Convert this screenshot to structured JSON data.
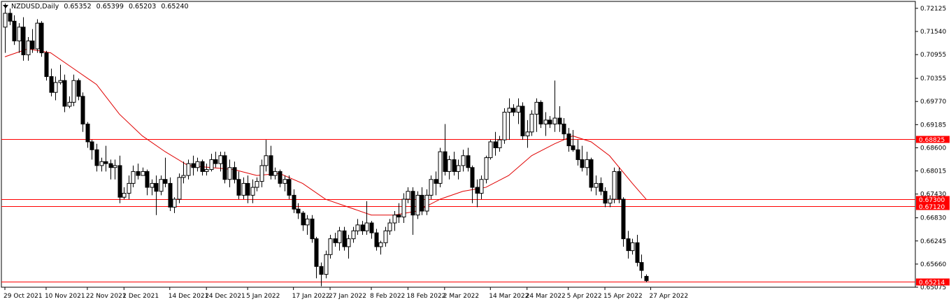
{
  "header": {
    "symbol": "NZDUSD,Daily",
    "open": "0.65352",
    "high": "0.65399",
    "low": "0.65203",
    "close": "0.65240"
  },
  "chart_data": {
    "type": "candlestick",
    "symbol": "NZDUSD",
    "timeframe": "Daily",
    "ylim": [
      0.65075,
      0.723
    ],
    "y_ticks": [
      "0.72125",
      "0.71540",
      "0.70955",
      "0.70355",
      "0.69770",
      "0.69185",
      "0.68600",
      "0.68015",
      "0.67430",
      "0.66830",
      "0.66245",
      "0.65660",
      "0.65075"
    ],
    "x_ticks": [
      {
        "index": 0,
        "label": "29 Oct 2021"
      },
      {
        "index": 9,
        "label": "10 Nov 2021"
      },
      {
        "index": 18,
        "label": "22 Nov 2021"
      },
      {
        "index": 26,
        "label": "2 Dec 2021"
      },
      {
        "index": 36,
        "label": "14 Dec 2021"
      },
      {
        "index": 44,
        "label": "24 Dec 2021"
      },
      {
        "index": 53,
        "label": "5 Jan 2022"
      },
      {
        "index": 63,
        "label": "17 Jan 2022"
      },
      {
        "index": 71,
        "label": "27 Jan 2022"
      },
      {
        "index": 80,
        "label": "8 Feb 2022"
      },
      {
        "index": 88,
        "label": "18 Feb 2022"
      },
      {
        "index": 96,
        "label": "2 Mar 2022"
      },
      {
        "index": 106,
        "label": "14 Mar 2022"
      },
      {
        "index": 114,
        "label": "24 Mar 2022"
      },
      {
        "index": 123,
        "label": "5 Apr 2022"
      },
      {
        "index": 131,
        "label": "15 Apr 2022"
      },
      {
        "index": 141,
        "label": "27 Apr 2022"
      }
    ],
    "levels": [
      {
        "value": 0.68825,
        "label": "0.68825",
        "color": "#ff0000"
      },
      {
        "value": 0.673,
        "label": "0.67300",
        "color": "#ff0000"
      },
      {
        "value": 0.6712,
        "label": "0.67120",
        "color": "#ff0000"
      },
      {
        "value": 0.65214,
        "label": "0.65214",
        "color": "#ff0000"
      }
    ],
    "ma_color": "#e00000",
    "colors": {
      "bull": "#ffffff",
      "bear": "#000000",
      "wick": "#000000",
      "grid_border": "#000000"
    },
    "candles": [
      [
        0.7165,
        0.7225,
        0.71,
        0.72
      ],
      [
        0.72,
        0.7212,
        0.717,
        0.718
      ],
      [
        0.718,
        0.7195,
        0.712,
        0.713
      ],
      [
        0.713,
        0.7175,
        0.71,
        0.7165
      ],
      [
        0.7165,
        0.719,
        0.708,
        0.7095
      ],
      [
        0.7095,
        0.714,
        0.708,
        0.713
      ],
      [
        0.713,
        0.716,
        0.71,
        0.711
      ],
      [
        0.711,
        0.7185,
        0.71,
        0.7175
      ],
      [
        0.7175,
        0.718,
        0.709,
        0.71
      ],
      [
        0.71,
        0.7105,
        0.703,
        0.704
      ],
      [
        0.704,
        0.706,
        0.699,
        0.7
      ],
      [
        0.7,
        0.704,
        0.698,
        0.7025
      ],
      [
        0.7025,
        0.707,
        0.702,
        0.703
      ],
      [
        0.703,
        0.7045,
        0.695,
        0.6965
      ],
      [
        0.6965,
        0.699,
        0.696,
        0.6975
      ],
      [
        0.6975,
        0.7045,
        0.6965,
        0.703
      ],
      [
        0.703,
        0.7035,
        0.698,
        0.699
      ],
      [
        0.699,
        0.7,
        0.69,
        0.692
      ],
      [
        0.692,
        0.6925,
        0.686,
        0.6875
      ],
      [
        0.6875,
        0.688,
        0.683,
        0.6855
      ],
      [
        0.6855,
        0.687,
        0.68,
        0.6815
      ],
      [
        0.6815,
        0.6835,
        0.68,
        0.6825
      ],
      [
        0.6825,
        0.6865,
        0.68,
        0.682
      ],
      [
        0.682,
        0.683,
        0.678,
        0.681
      ],
      [
        0.681,
        0.683,
        0.678,
        0.6815
      ],
      [
        0.6815,
        0.684,
        0.672,
        0.6735
      ],
      [
        0.6735,
        0.676,
        0.673,
        0.6745
      ],
      [
        0.6745,
        0.679,
        0.673,
        0.677
      ],
      [
        0.677,
        0.6815,
        0.676,
        0.68
      ],
      [
        0.68,
        0.682,
        0.678,
        0.679
      ],
      [
        0.679,
        0.681,
        0.679,
        0.68
      ],
      [
        0.68,
        0.6805,
        0.674,
        0.676
      ],
      [
        0.676,
        0.678,
        0.674,
        0.677
      ],
      [
        0.677,
        0.679,
        0.669,
        0.675
      ],
      [
        0.675,
        0.679,
        0.674,
        0.678
      ],
      [
        0.678,
        0.6835,
        0.676,
        0.677
      ],
      [
        0.677,
        0.6785,
        0.67,
        0.671
      ],
      [
        0.671,
        0.6735,
        0.6695,
        0.673
      ],
      [
        0.673,
        0.6795,
        0.672,
        0.6785
      ],
      [
        0.6785,
        0.6825,
        0.677,
        0.679
      ],
      [
        0.679,
        0.683,
        0.678,
        0.682
      ],
      [
        0.682,
        0.684,
        0.679,
        0.681
      ],
      [
        0.681,
        0.6835,
        0.68,
        0.6825
      ],
      [
        0.6825,
        0.683,
        0.679,
        0.68
      ],
      [
        0.68,
        0.682,
        0.679,
        0.6805
      ],
      [
        0.6805,
        0.6845,
        0.68,
        0.683
      ],
      [
        0.683,
        0.685,
        0.681,
        0.682
      ],
      [
        0.682,
        0.685,
        0.68,
        0.684
      ],
      [
        0.684,
        0.685,
        0.677,
        0.678
      ],
      [
        0.678,
        0.683,
        0.676,
        0.681
      ],
      [
        0.681,
        0.6825,
        0.677,
        0.678
      ],
      [
        0.678,
        0.68,
        0.673,
        0.674
      ],
      [
        0.674,
        0.6785,
        0.673,
        0.677
      ],
      [
        0.677,
        0.679,
        0.672,
        0.674
      ],
      [
        0.674,
        0.678,
        0.672,
        0.676
      ],
      [
        0.676,
        0.6785,
        0.675,
        0.6775
      ],
      [
        0.6775,
        0.683,
        0.676,
        0.6815
      ],
      [
        0.6815,
        0.688,
        0.68,
        0.684
      ],
      [
        0.684,
        0.6865,
        0.678,
        0.679
      ],
      [
        0.679,
        0.681,
        0.678,
        0.68
      ],
      [
        0.68,
        0.6805,
        0.676,
        0.677
      ],
      [
        0.677,
        0.679,
        0.675,
        0.678
      ],
      [
        0.678,
        0.679,
        0.673,
        0.674
      ],
      [
        0.674,
        0.6755,
        0.6695,
        0.6705
      ],
      [
        0.6705,
        0.672,
        0.668,
        0.6695
      ],
      [
        0.6695,
        0.67,
        0.665,
        0.6665
      ],
      [
        0.6665,
        0.669,
        0.664,
        0.668
      ],
      [
        0.668,
        0.669,
        0.662,
        0.663
      ],
      [
        0.663,
        0.6635,
        0.653,
        0.656
      ],
      [
        0.656,
        0.657,
        0.651,
        0.654
      ],
      [
        0.654,
        0.66,
        0.653,
        0.659
      ],
      [
        0.659,
        0.664,
        0.658,
        0.663
      ],
      [
        0.663,
        0.6645,
        0.661,
        0.662
      ],
      [
        0.662,
        0.666,
        0.66,
        0.665
      ],
      [
        0.665,
        0.666,
        0.66,
        0.661
      ],
      [
        0.661,
        0.664,
        0.658,
        0.663
      ],
      [
        0.663,
        0.666,
        0.662,
        0.665
      ],
      [
        0.665,
        0.668,
        0.664,
        0.6665
      ],
      [
        0.6665,
        0.6675,
        0.664,
        0.665
      ],
      [
        0.665,
        0.6725,
        0.664,
        0.667
      ],
      [
        0.667,
        0.6675,
        0.663,
        0.6645
      ],
      [
        0.6645,
        0.6655,
        0.66,
        0.661
      ],
      [
        0.661,
        0.6625,
        0.659,
        0.662
      ],
      [
        0.662,
        0.666,
        0.661,
        0.665
      ],
      [
        0.665,
        0.668,
        0.664,
        0.667
      ],
      [
        0.667,
        0.67,
        0.665,
        0.669
      ],
      [
        0.669,
        0.672,
        0.667,
        0.6685
      ],
      [
        0.6685,
        0.6745,
        0.667,
        0.673
      ],
      [
        0.673,
        0.676,
        0.672,
        0.675
      ],
      [
        0.675,
        0.676,
        0.664,
        0.669
      ],
      [
        0.669,
        0.675,
        0.668,
        0.674
      ],
      [
        0.674,
        0.676,
        0.669,
        0.67
      ],
      [
        0.67,
        0.6755,
        0.669,
        0.674
      ],
      [
        0.674,
        0.679,
        0.673,
        0.678
      ],
      [
        0.678,
        0.68,
        0.674,
        0.677
      ],
      [
        0.677,
        0.686,
        0.676,
        0.685
      ],
      [
        0.685,
        0.692,
        0.679,
        0.68
      ],
      [
        0.68,
        0.684,
        0.678,
        0.683
      ],
      [
        0.683,
        0.685,
        0.679,
        0.68
      ],
      [
        0.68,
        0.683,
        0.678,
        0.6815
      ],
      [
        0.6815,
        0.6855,
        0.68,
        0.684
      ],
      [
        0.684,
        0.686,
        0.68,
        0.681
      ],
      [
        0.681,
        0.6815,
        0.672,
        0.676
      ],
      [
        0.676,
        0.678,
        0.671,
        0.6745
      ],
      [
        0.6745,
        0.679,
        0.673,
        0.678
      ],
      [
        0.678,
        0.684,
        0.677,
        0.6835
      ],
      [
        0.6835,
        0.688,
        0.683,
        0.6875
      ],
      [
        0.6875,
        0.69,
        0.684,
        0.686
      ],
      [
        0.686,
        0.689,
        0.685,
        0.688
      ],
      [
        0.688,
        0.696,
        0.687,
        0.695
      ],
      [
        0.695,
        0.6985,
        0.688,
        0.696
      ],
      [
        0.696,
        0.697,
        0.694,
        0.695
      ],
      [
        0.695,
        0.6985,
        0.692,
        0.6965
      ],
      [
        0.6965,
        0.6975,
        0.688,
        0.689
      ],
      [
        0.689,
        0.693,
        0.686,
        0.69
      ],
      [
        0.69,
        0.6955,
        0.689,
        0.6945
      ],
      [
        0.6945,
        0.6985,
        0.69,
        0.6975
      ],
      [
        0.6975,
        0.698,
        0.691,
        0.692
      ],
      [
        0.692,
        0.695,
        0.689,
        0.693
      ],
      [
        0.693,
        0.694,
        0.691,
        0.692
      ],
      [
        0.692,
        0.703,
        0.69,
        0.6935
      ],
      [
        0.6935,
        0.6965,
        0.69,
        0.692
      ],
      [
        0.692,
        0.6935,
        0.688,
        0.6895
      ],
      [
        0.6895,
        0.691,
        0.685,
        0.6865
      ],
      [
        0.6865,
        0.6905,
        0.685,
        0.6855
      ],
      [
        0.6855,
        0.688,
        0.6815,
        0.683
      ],
      [
        0.683,
        0.6865,
        0.68,
        0.681
      ],
      [
        0.681,
        0.685,
        0.679,
        0.683
      ],
      [
        0.683,
        0.6835,
        0.675,
        0.676
      ],
      [
        0.676,
        0.679,
        0.674,
        0.677
      ],
      [
        0.677,
        0.6785,
        0.674,
        0.675
      ],
      [
        0.675,
        0.676,
        0.671,
        0.672
      ],
      [
        0.672,
        0.674,
        0.671,
        0.673
      ],
      [
        0.673,
        0.681,
        0.672,
        0.68
      ],
      [
        0.68,
        0.681,
        0.672,
        0.673
      ],
      [
        0.673,
        0.6735,
        0.661,
        0.663
      ],
      [
        0.663,
        0.665,
        0.658,
        0.66
      ],
      [
        0.66,
        0.663,
        0.659,
        0.662
      ],
      [
        0.662,
        0.664,
        0.656,
        0.657
      ],
      [
        0.657,
        0.659,
        0.653,
        0.655
      ],
      [
        0.6535,
        0.654,
        0.652,
        0.6524
      ]
    ],
    "ma": [
      [
        0,
        0.709
      ],
      [
        5,
        0.711
      ],
      [
        10,
        0.71
      ],
      [
        15,
        0.706
      ],
      [
        20,
        0.702
      ],
      [
        25,
        0.6945
      ],
      [
        30,
        0.689
      ],
      [
        35,
        0.685
      ],
      [
        40,
        0.6815
      ],
      [
        45,
        0.681
      ],
      [
        50,
        0.6805
      ],
      [
        55,
        0.679
      ],
      [
        60,
        0.6795
      ],
      [
        65,
        0.677
      ],
      [
        70,
        0.673
      ],
      [
        75,
        0.671
      ],
      [
        80,
        0.669
      ],
      [
        85,
        0.669
      ],
      [
        90,
        0.67
      ],
      [
        95,
        0.673
      ],
      [
        100,
        0.675
      ],
      [
        105,
        0.676
      ],
      [
        110,
        0.679
      ],
      [
        115,
        0.684
      ],
      [
        120,
        0.687
      ],
      [
        124,
        0.689
      ],
      [
        128,
        0.6875
      ],
      [
        132,
        0.684
      ],
      [
        137,
        0.677
      ],
      [
        140,
        0.673
      ]
    ]
  }
}
